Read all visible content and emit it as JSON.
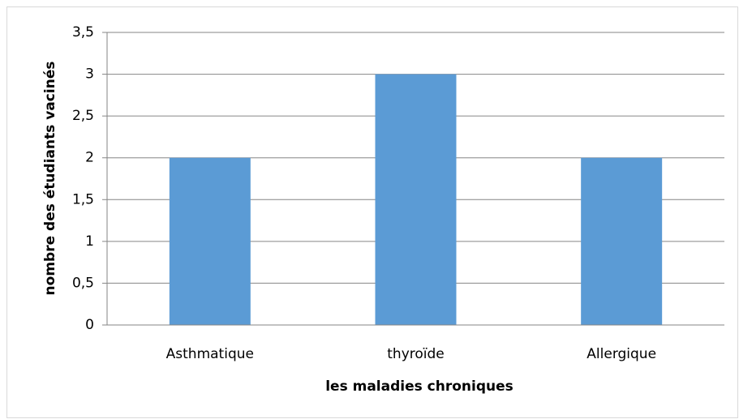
{
  "chart_data": {
    "type": "bar",
    "x_label": "les maladies chroniques",
    "y_label": "nombre des étudiants vacinés",
    "categories": [
      "Asthmatique",
      "thyroïde",
      "Allergique"
    ],
    "values": [
      2,
      3,
      2
    ],
    "color": "#5b9bd5",
    "ylim": [
      0,
      3.5
    ],
    "yticks": [
      0,
      {
        "value": 0.5,
        "label": "0,5"
      },
      1,
      {
        "value": 1.5,
        "label": "1,5"
      },
      2,
      {
        "value": 2.5,
        "label": "2,5"
      },
      3,
      {
        "value": 3.5,
        "label": "3,5"
      }
    ],
    "grid": true
  }
}
